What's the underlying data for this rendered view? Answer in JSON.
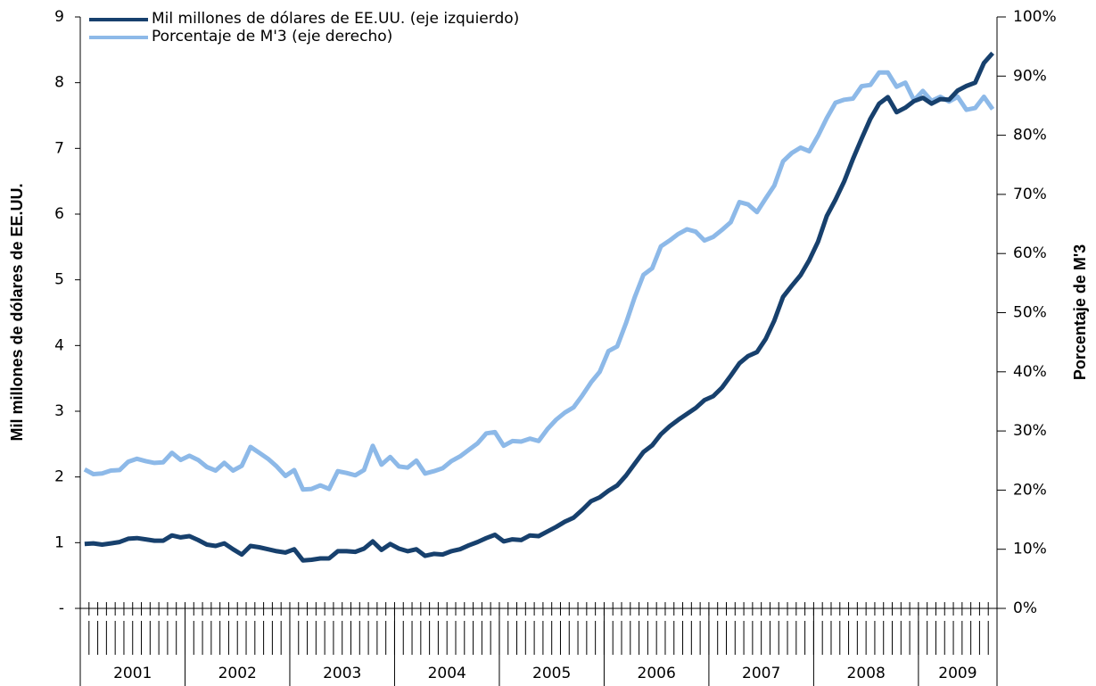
{
  "chart_data": {
    "type": "line",
    "y_label": "Mil millones de dólares de EE.UU.",
    "y2_label": "Porcentaje de M'3",
    "year_labels": [
      "2001",
      "2002",
      "2003",
      "2004",
      "2005",
      "2006",
      "2007",
      "2008",
      "2009"
    ],
    "months_per_year": [
      12,
      12,
      12,
      12,
      12,
      12,
      12,
      12,
      9
    ],
    "ylim": [
      0,
      9
    ],
    "yticks": [
      {
        "value": 0,
        "label": "-"
      },
      1,
      2,
      3,
      4,
      5,
      6,
      7,
      8,
      9
    ],
    "y2lim": [
      0,
      100
    ],
    "y2ticks": [
      {
        "value": 0,
        "label": "0%"
      },
      {
        "value": 10,
        "label": "10%"
      },
      {
        "value": 20,
        "label": "20%"
      },
      {
        "value": 30,
        "label": "30%"
      },
      {
        "value": 40,
        "label": "40%"
      },
      {
        "value": 50,
        "label": "50%"
      },
      {
        "value": 60,
        "label": "60%"
      },
      {
        "value": 70,
        "label": "70%"
      },
      {
        "value": 80,
        "label": "80%"
      },
      {
        "value": 90,
        "label": "90%"
      },
      {
        "value": 100,
        "label": "100%"
      }
    ],
    "series": [
      {
        "name": "Mil millones de dólares de EE.UU. (eje izquierdo)",
        "color": "#17406d",
        "axis": "y",
        "values": [
          0.98,
          0.99,
          0.97,
          0.99,
          1.01,
          1.06,
          1.07,
          1.05,
          1.03,
          1.03,
          1.11,
          1.08,
          1.1,
          1.04,
          0.97,
          0.95,
          0.99,
          0.9,
          0.82,
          0.95,
          0.93,
          0.9,
          0.87,
          0.85,
          0.9,
          0.73,
          0.74,
          0.76,
          0.76,
          0.87,
          0.87,
          0.86,
          0.91,
          1.02,
          0.89,
          0.98,
          0.91,
          0.87,
          0.9,
          0.8,
          0.83,
          0.82,
          0.87,
          0.9,
          0.96,
          1.01,
          1.07,
          1.12,
          1.02,
          1.05,
          1.04,
          1.11,
          1.1,
          1.17,
          1.24,
          1.32,
          1.38,
          1.5,
          1.63,
          1.69,
          1.79,
          1.87,
          2.02,
          2.2,
          2.38,
          2.48,
          2.65,
          2.77,
          2.87,
          2.96,
          3.05,
          3.17,
          3.23,
          3.36,
          3.54,
          3.73,
          3.84,
          3.9,
          4.1,
          4.38,
          4.74,
          4.91,
          5.07,
          5.3,
          5.58,
          5.97,
          6.22,
          6.5,
          6.84,
          7.15,
          7.45,
          7.68,
          7.78,
          7.55,
          7.62,
          7.72,
          7.77,
          7.68,
          7.75,
          7.74,
          7.88,
          7.95,
          8.0,
          8.3,
          8.45
        ]
      },
      {
        "name": "Porcentaje de M'3 (eje derecho)",
        "color": "#8db9e8",
        "axis": "y2",
        "values": [
          23.5,
          22.7,
          22.8,
          23.3,
          23.4,
          24.8,
          25.3,
          24.9,
          24.6,
          24.7,
          26.3,
          25.1,
          25.8,
          25.1,
          23.9,
          23.3,
          24.6,
          23.3,
          24.1,
          27.3,
          26.3,
          25.3,
          24.0,
          22.4,
          23.4,
          20.1,
          20.2,
          20.8,
          20.2,
          23.2,
          22.9,
          22.5,
          23.4,
          27.5,
          24.3,
          25.6,
          24.0,
          23.8,
          25.0,
          22.8,
          23.2,
          23.7,
          24.9,
          25.7,
          26.8,
          27.9,
          29.6,
          29.8,
          27.5,
          28.3,
          28.2,
          28.7,
          28.3,
          30.3,
          31.9,
          33.1,
          34.0,
          36.0,
          38.2,
          40.0,
          43.5,
          44.3,
          48.2,
          52.6,
          56.4,
          57.5,
          61.2,
          62.2,
          63.3,
          64.1,
          63.7,
          62.2,
          62.8,
          64.0,
          65.3,
          68.7,
          68.3,
          67.0,
          69.3,
          71.5,
          75.6,
          77.0,
          77.9,
          77.3,
          79.9,
          82.9,
          85.5,
          86.0,
          86.2,
          88.3,
          88.5,
          90.6,
          90.6,
          88.2,
          88.9,
          85.9,
          87.5,
          85.8,
          86.5,
          85.7,
          86.5,
          84.3,
          84.6,
          86.5,
          84.4
        ]
      }
    ]
  }
}
